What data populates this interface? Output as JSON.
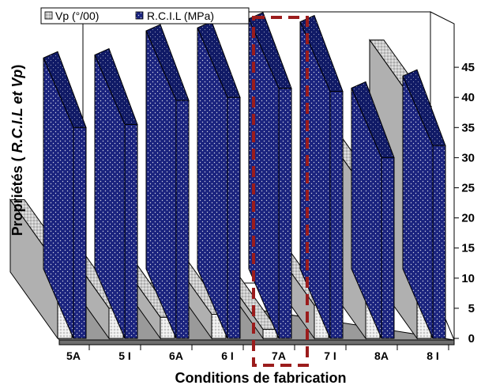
{
  "chart_data": {
    "type": "bar",
    "view": "3d",
    "categories": [
      "5A",
      "5 I",
      "6A",
      "6 I",
      "7A",
      "7 I",
      "8A",
      "8 I"
    ],
    "series": [
      {
        "name": "Vp (°/00)",
        "values": [
          12,
          5,
          3.5,
          4,
          1.5,
          5.5,
          24.5,
          38.5
        ]
      },
      {
        "name": "R.C.I.L (MPa)",
        "values": [
          35,
          35.5,
          39.5,
          40,
          41.5,
          41,
          30,
          32
        ]
      }
    ],
    "ylabel": "Propriétés ( R.C.I.L et Vp)",
    "ylabel_main": "Propriétés (",
    "ylabel_italic": "R.C.I.L et Vp",
    "ylabel_close": ")",
    "xlabel": "Conditions de fabrication",
    "ylim": [
      0,
      45
    ],
    "yticks": [
      0,
      5,
      10,
      15,
      20,
      25,
      30,
      35,
      40,
      45
    ],
    "highlight_category": "7A",
    "grid": false,
    "legend": "top-left",
    "colors": {
      "Vp (°/00)": "#d0d0d0",
      "R.C.I.L (MPa)": "#1a237e",
      "highlight": "#9b1c1c"
    }
  }
}
